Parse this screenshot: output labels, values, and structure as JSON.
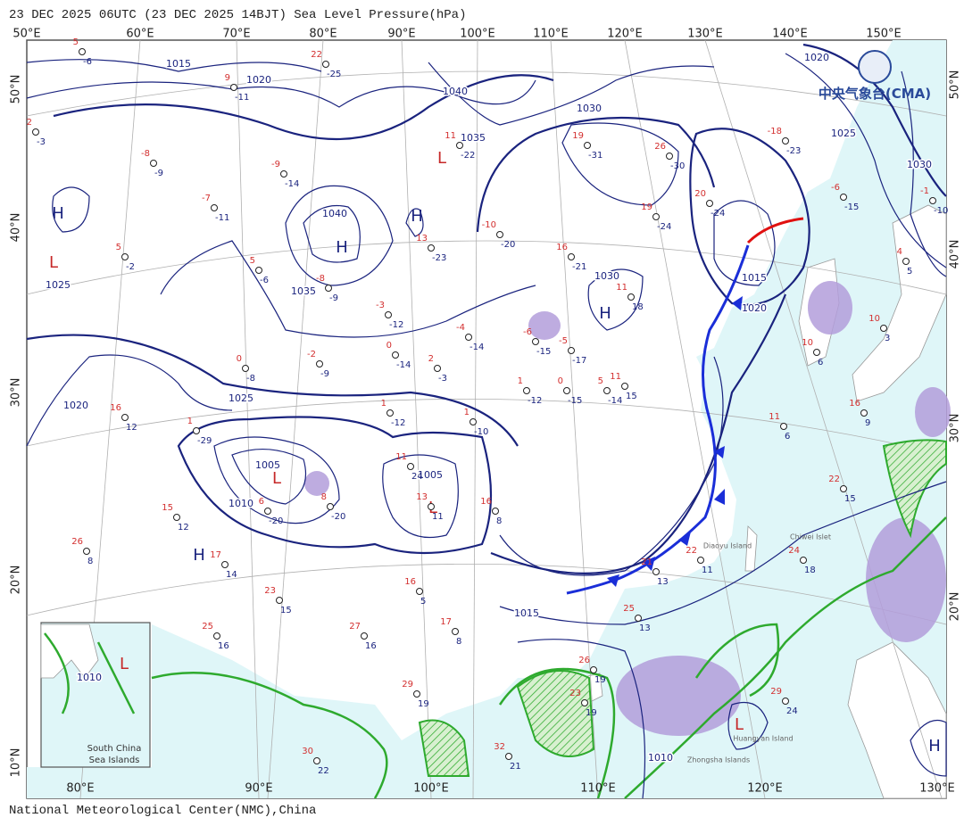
{
  "header": {
    "title": "23 DEC 2025 06UTC  (23 DEC 2025 14BJT) Sea Level Pressure(hPa)"
  },
  "logo": {
    "text": "中央气象台(CMA)"
  },
  "axes": {
    "top": [
      "50°E",
      "60°E",
      "70°E",
      "80°E",
      "90°E",
      "100°E",
      "110°E",
      "120°E",
      "130°E",
      "140°E",
      "150°E"
    ],
    "bottom": [
      "80°E",
      "90°E",
      "100°E",
      "110°E",
      "120°E",
      "130°E"
    ],
    "left": [
      "50°N",
      "40°N",
      "30°N",
      "20°N",
      "10°N"
    ],
    "right": [
      "50°N",
      "40°N",
      "30°N",
      "20°N"
    ]
  },
  "centers": [
    "H",
    "L",
    "H",
    "H",
    "L",
    "H",
    "L",
    "L",
    "H",
    "L",
    "H",
    "L"
  ],
  "isobar_labels": [
    "1015",
    "1020",
    "1040",
    "1035",
    "1030",
    "1025",
    "1030",
    "1020",
    "1040",
    "1035",
    "1025",
    "1020",
    "1025",
    "1010",
    "1005",
    "1005",
    "1030",
    "1015",
    "1020",
    "1015",
    "1010",
    "1010"
  ],
  "places": [
    "Chiwei Islet",
    "Diaoyu Island",
    "Huangyan Island",
    "Zhongsha Islands"
  ],
  "inset": {
    "line1": "South China",
    "line2": "Sea Islands"
  },
  "stations": [
    {
      "t": "22",
      "d": "-25"
    },
    {
      "t": "9",
      "d": "-11"
    },
    {
      "t": "5",
      "d": "-6"
    },
    {
      "t": "2",
      "d": "-3"
    },
    {
      "t": "-8",
      "d": "-9"
    },
    {
      "t": "-9",
      "d": "-14"
    },
    {
      "t": "-7",
      "d": "-11"
    },
    {
      "t": "5",
      "d": "-2"
    },
    {
      "t": "5",
      "d": "-6"
    },
    {
      "t": "-8",
      "d": "-9"
    },
    {
      "t": "13",
      "d": "-23"
    },
    {
      "t": "11",
      "d": "-22"
    },
    {
      "t": "19",
      "d": "-31"
    },
    {
      "t": "26",
      "d": "-30"
    },
    {
      "t": "-10",
      "d": "-20"
    },
    {
      "t": "16",
      "d": "-21"
    },
    {
      "t": "20",
      "d": "-24"
    },
    {
      "t": "19",
      "d": "-24"
    },
    {
      "t": "-18",
      "d": "-23"
    },
    {
      "t": "11",
      "d": "18"
    },
    {
      "t": "-6",
      "d": "-15"
    },
    {
      "t": "-4",
      "d": "-14"
    },
    {
      "t": "-3",
      "d": "-12"
    },
    {
      "t": "-2",
      "d": "-9"
    },
    {
      "t": "0",
      "d": "-8"
    },
    {
      "t": "0",
      "d": "-14"
    },
    {
      "t": "2",
      "d": "-3"
    },
    {
      "t": "-5",
      "d": "-17"
    },
    {
      "t": "1",
      "d": "-12"
    },
    {
      "t": "1",
      "d": "-10"
    },
    {
      "t": "1",
      "d": "-12"
    },
    {
      "t": "0",
      "d": "-15"
    },
    {
      "t": "5",
      "d": "-14"
    },
    {
      "t": "11",
      "d": "15"
    },
    {
      "t": "1",
      "d": "-29"
    },
    {
      "t": "16",
      "d": "12"
    },
    {
      "t": "11",
      "d": "24"
    },
    {
      "t": "8",
      "d": "-20"
    },
    {
      "t": "6",
      "d": "-20"
    },
    {
      "t": "13",
      "d": "11"
    },
    {
      "t": "16",
      "d": "8"
    },
    {
      "t": "15",
      "d": "12"
    },
    {
      "t": "26",
      "d": "8"
    },
    {
      "t": "17",
      "d": "14"
    },
    {
      "t": "23",
      "d": "15"
    },
    {
      "t": "16",
      "d": "5"
    },
    {
      "t": "17",
      "d": "8"
    },
    {
      "t": "27",
      "d": "16"
    },
    {
      "t": "25",
      "d": "16"
    },
    {
      "t": "29",
      "d": "19"
    },
    {
      "t": "30",
      "d": "22"
    },
    {
      "t": "32",
      "d": "21"
    },
    {
      "t": "23",
      "d": "19"
    },
    {
      "t": "26",
      "d": "19"
    },
    {
      "t": "25",
      "d": "13"
    },
    {
      "t": "21",
      "d": "13"
    },
    {
      "t": "22",
      "d": "11"
    },
    {
      "t": "29",
      "d": "24"
    },
    {
      "t": "24",
      "d": "18"
    },
    {
      "t": "22",
      "d": "15"
    },
    {
      "t": "16",
      "d": "9"
    },
    {
      "t": "11",
      "d": "6"
    },
    {
      "t": "10",
      "d": "6"
    },
    {
      "t": "-1",
      "d": "-10"
    },
    {
      "t": "-6",
      "d": "-15"
    },
    {
      "t": "4",
      "d": "5"
    },
    {
      "t": "10",
      "d": "3"
    }
  ],
  "footer": {
    "text": "National Meteorological Center(NMC),China"
  }
}
